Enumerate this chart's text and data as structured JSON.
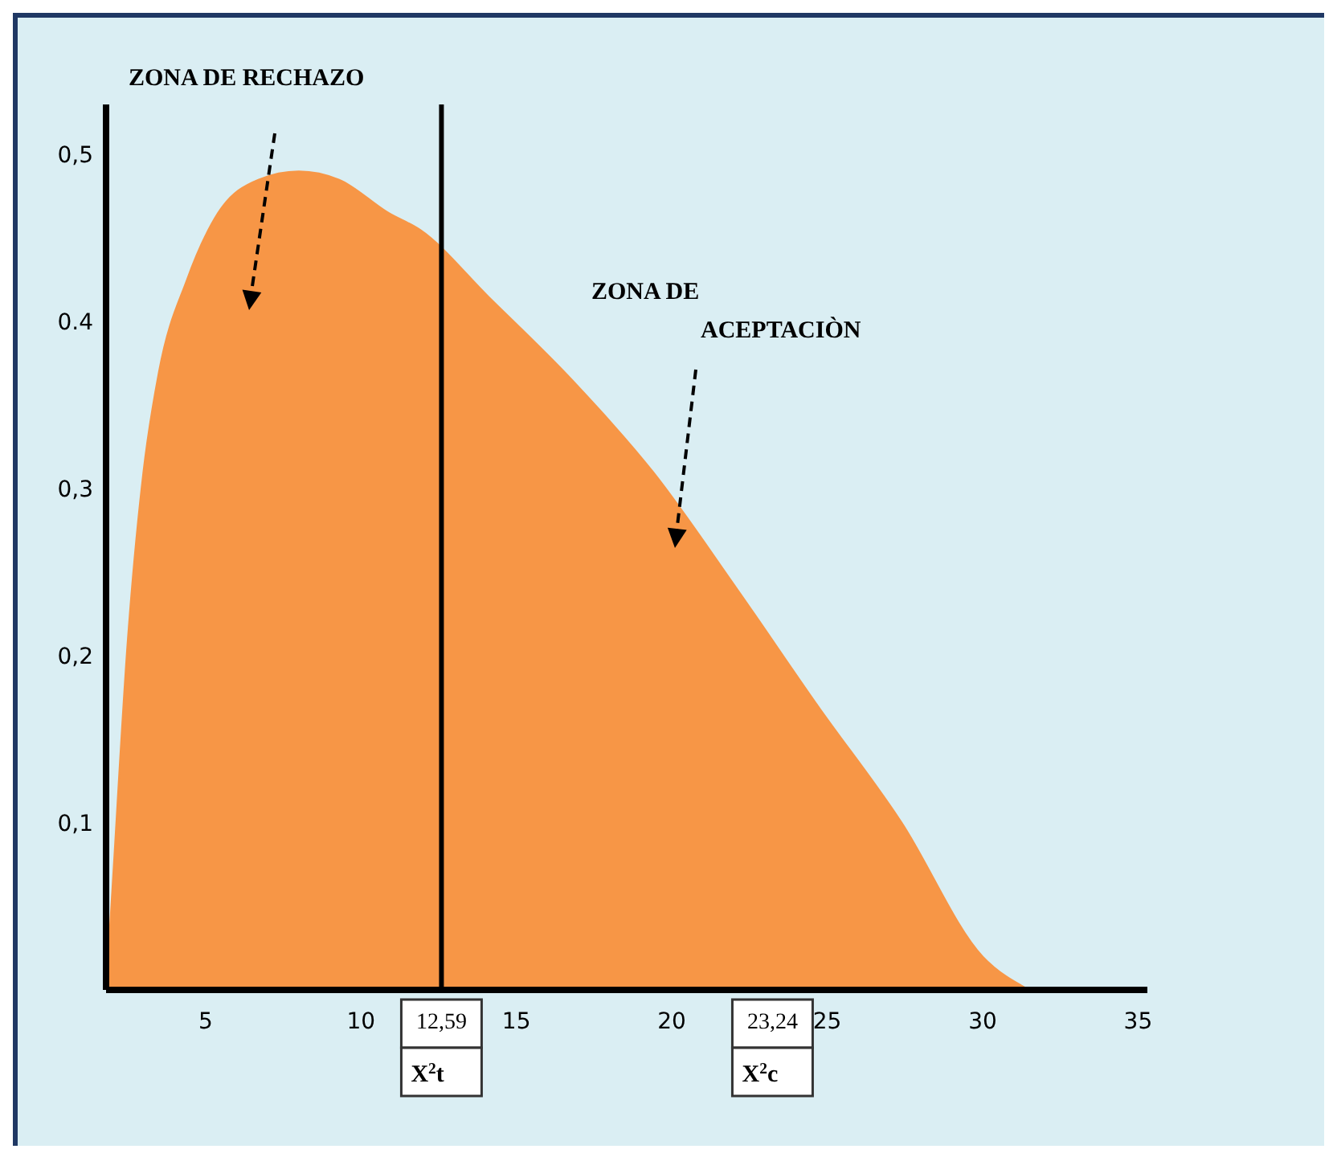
{
  "chart_data": {
    "type": "area",
    "x": [
      1.8,
      2,
      2.5,
      3,
      3.5,
      4.4,
      5.4,
      6.7,
      8,
      9.3,
      10.9,
      11.9,
      14.1,
      16.8,
      19.4,
      22.1,
      24.7,
      27.4,
      30,
      31.5
    ],
    "values": [
      0,
      0.06,
      0.21,
      0.31,
      0.37,
      0.425,
      0.465,
      0.485,
      0.49,
      0.485,
      0.465,
      0.455,
      0.415,
      0.365,
      0.31,
      0.24,
      0.17,
      0.1,
      0.02,
      0
    ],
    "color": "#f79646",
    "xlim": [
      1.8,
      35.3
    ],
    "xticks": [
      5,
      10,
      {
        "value": 12.59,
        "label": "12,59"
      },
      15,
      20,
      {
        "value": 23.24,
        "label": "23,24"
      },
      25,
      30,
      35
    ],
    "ylim": [
      0,
      0.53
    ],
    "yticks": [
      {
        "value": 0.1,
        "label": "0,1"
      },
      {
        "value": 0.2,
        "label": "0,2"
      },
      {
        "value": 0.3,
        "label": "0,3"
      },
      {
        "value": 0.4,
        "label": "0.4"
      },
      {
        "value": 0.5,
        "label": "0,5"
      }
    ],
    "ref_lines": [
      {
        "axis": "x",
        "value": 12.59,
        "color": "#000000"
      }
    ],
    "annotations": [
      "ZONA DE RECHAZO",
      "ZONA DE\nACEPTACIÒN",
      "X$^{2}$t",
      "X$^{2}$c"
    ]
  }
}
